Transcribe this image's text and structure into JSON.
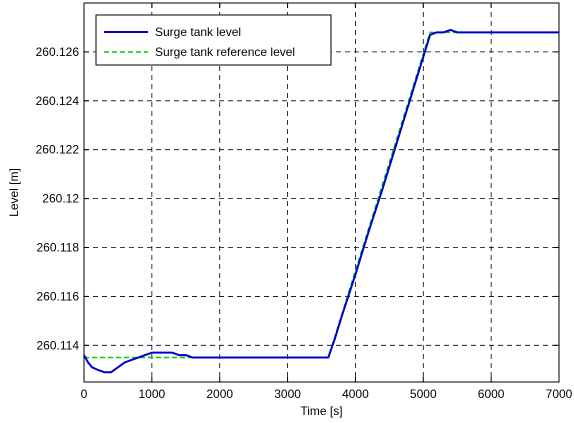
{
  "chart_data": {
    "type": "line",
    "title": "",
    "xlabel": "Time [s]",
    "ylabel": "Level [m]",
    "xlim": [
      0,
      7000
    ],
    "ylim": [
      260.1125,
      260.128
    ],
    "xticks": [
      0,
      1000,
      2000,
      3000,
      4000,
      5000,
      6000,
      7000
    ],
    "xtick_labels": [
      "0",
      "1000",
      "2000",
      "3000",
      "4000",
      "5000",
      "6000",
      "7000"
    ],
    "yticks": [
      260.114,
      260.116,
      260.118,
      260.12,
      260.122,
      260.124,
      260.126
    ],
    "ytick_labels": [
      "260.114",
      "260.116",
      "260.118",
      "260.12",
      "260.122",
      "260.124",
      "260.126"
    ],
    "grid": true,
    "legend_position": "top-left",
    "series": [
      {
        "name": "Surge tank level",
        "color": "#0000cc",
        "style": "solid",
        "x": [
          0,
          60,
          120,
          200,
          300,
          400,
          500,
          600,
          700,
          800,
          900,
          1000,
          1100,
          1200,
          1300,
          1400,
          1500,
          1600,
          1800,
          2000,
          2400,
          3000,
          3600,
          3700,
          3800,
          4000,
          4200,
          4400,
          4600,
          4800,
          5000,
          5100,
          5200,
          5300,
          5400,
          5500,
          5600,
          5800,
          6200,
          7000
        ],
        "y": [
          260.1136,
          260.1133,
          260.1131,
          260.113,
          260.1129,
          260.1129,
          260.1131,
          260.1133,
          260.1134,
          260.1135,
          260.1136,
          260.1137,
          260.1137,
          260.1137,
          260.1137,
          260.1136,
          260.1136,
          260.1135,
          260.1135,
          260.1135,
          260.1135,
          260.1135,
          260.1135,
          260.1143,
          260.1152,
          260.1169,
          260.1187,
          260.1204,
          260.1222,
          260.124,
          260.1258,
          260.1267,
          260.1268,
          260.1268,
          260.1269,
          260.1268,
          260.1268,
          260.1268,
          260.1268,
          260.1268
        ]
      },
      {
        "name": "Surge tank reference level",
        "color": "#00cc00",
        "style": "dashed",
        "x": [
          0,
          3600,
          5100,
          7000
        ],
        "y": [
          260.1135,
          260.1135,
          260.1268,
          260.1268
        ]
      }
    ]
  }
}
